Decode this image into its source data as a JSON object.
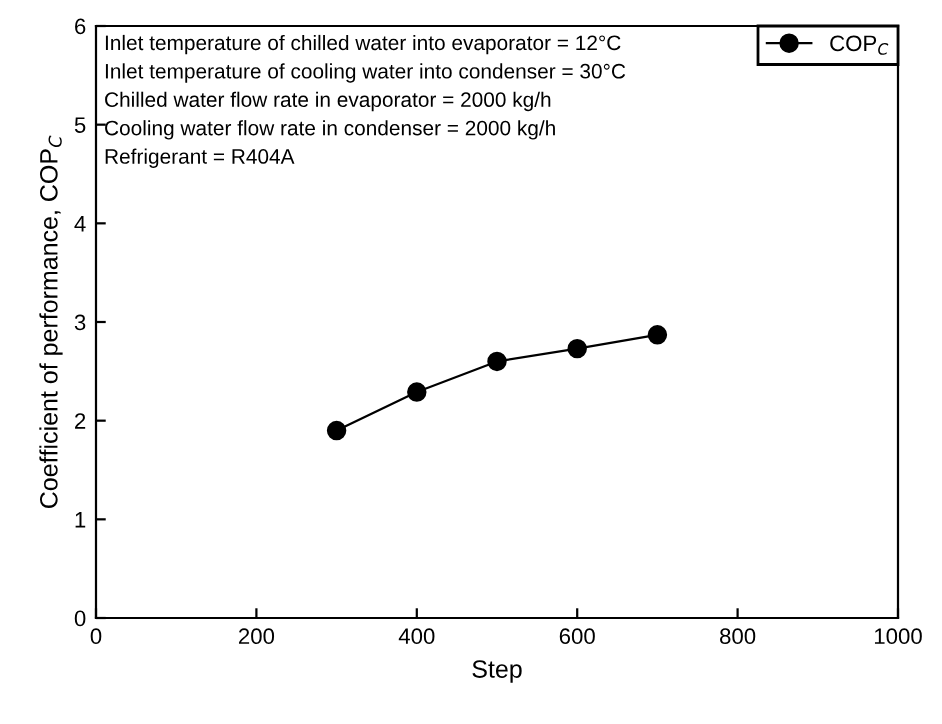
{
  "chart_data": {
    "type": "line",
    "xlabel": "Step",
    "ylabel": "Coefficient of performance, COP$_{C}$",
    "x": [
      300,
      400,
      500,
      600,
      700
    ],
    "series": [
      {
        "name": "COP$_{C}$",
        "color": "#000000",
        "values": [
          1.9,
          2.29,
          2.6,
          2.73,
          2.87
        ]
      }
    ],
    "xlim": [
      0,
      1000
    ],
    "xticks": [
      0,
      200,
      400,
      600,
      800,
      1000
    ],
    "ylim": [
      0,
      6
    ],
    "yticks": [
      0,
      1,
      2,
      3,
      4,
      5,
      6
    ],
    "marker": "circle",
    "line_style": "solid",
    "grid": false,
    "legend": "top right",
    "annotations": [
      "Inlet temperature of chilled water into evaporator = 12°C",
      "Inlet temperature of cooling water into condenser = 30°C",
      "Chilled water flow rate in evaporator = 2000 kg/h",
      "Cooling water flow rate in condenser = 2000 kg/h",
      "Refrigerant = R404A"
    ]
  }
}
